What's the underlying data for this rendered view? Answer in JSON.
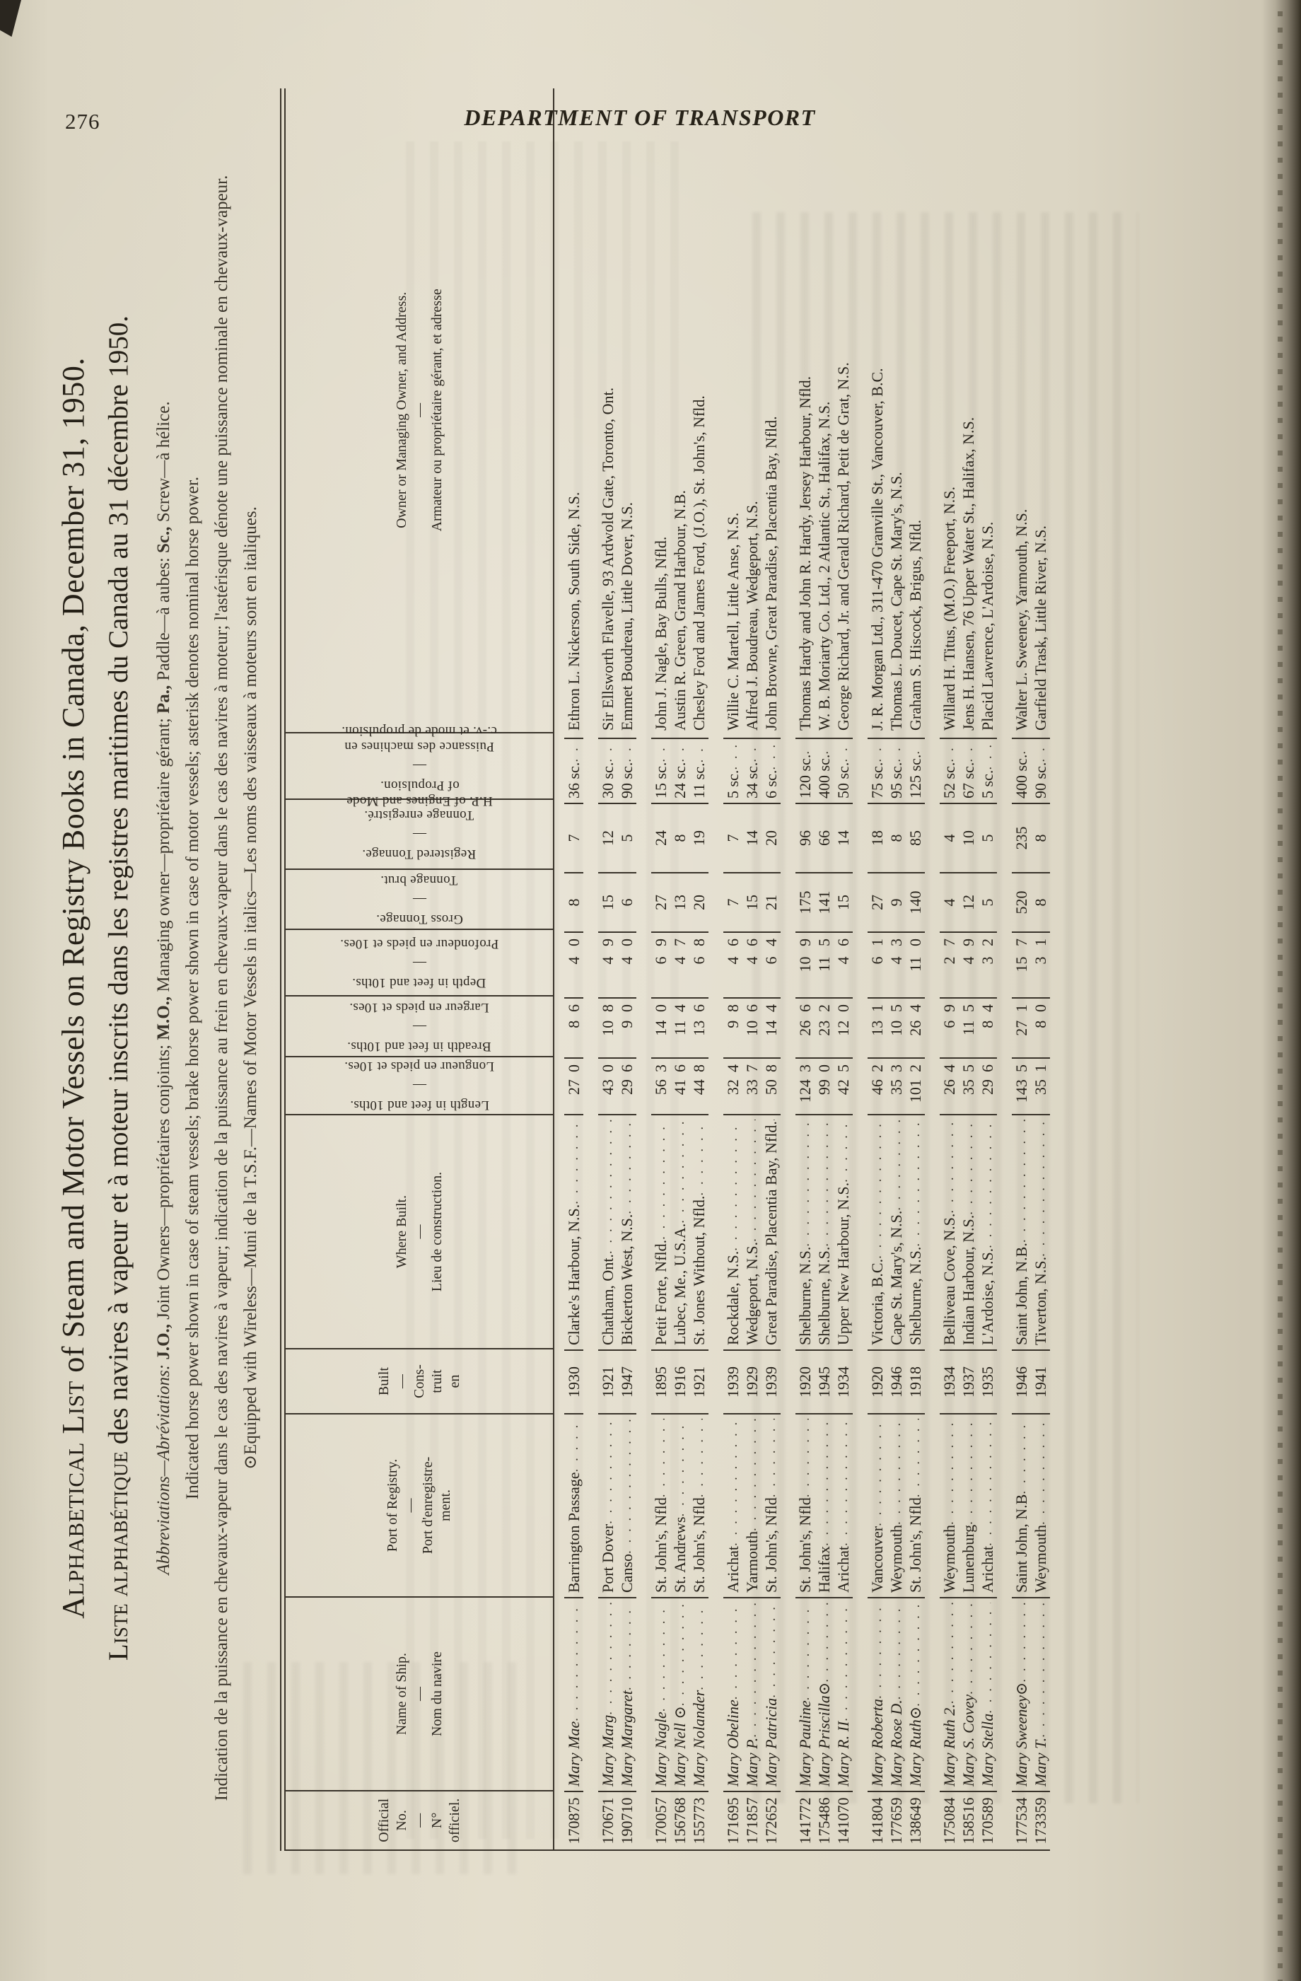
{
  "page": {
    "number": "276",
    "running_head": "DEPARTMENT OF TRANSPORT"
  },
  "title": {
    "en_lead": "Alphabetical List",
    "en_rest": " of Steam and Motor Vessels on Registry Books in Canada, December 31, 1950.",
    "fr_lead": "Liste alphabétique",
    "fr_rest": " des navires à vapeur et à moteur inscrits dans les registres maritimes du Canada au 31 décembre 1950."
  },
  "notes": {
    "abbrev_segments": [
      {
        "t": "Abbreviations—Abréviations: ",
        "s": "i"
      },
      {
        "t": "J.O.,",
        "s": "b"
      },
      {
        "t": " Joint Owners—propriétaires conjoints; ",
        "s": "n"
      },
      {
        "t": "M.O.,",
        "s": "b"
      },
      {
        "t": " Managing owner—propriétaire gérant; ",
        "s": "n"
      },
      {
        "t": "Pa.,",
        "s": "b"
      },
      {
        "t": " Paddle—à aubes: ",
        "s": "n"
      },
      {
        "t": "Sc.,",
        "s": "b"
      },
      {
        "t": " Screw—à hélice.",
        "s": "n"
      }
    ],
    "hp_en": "Indicated horse power shown in case of steam vessels; brake horse power shown in case of motor vessels; asterisk denotes nominal horse power.",
    "hp_fr": "Indication de la puissance en chevaux-vapeur dans le cas des navires à vapeur; indication de la puissance au frein en chevaux-vapeur dans le cas des navires à moteur; l'astérisque dénote une puissance nominale en chevaux-vapeur.",
    "wireless": "⊙Equipped with Wireless—Muni de la T.S.F.—Names of Motor Vessels in italics—Les noms des vaisseaux à moteurs sont en italiques."
  },
  "table": {
    "sep": "—",
    "headers": {
      "official_no": "Official\nNo.\n—\nN°\nofficiel.",
      "name": "Name of Ship.\n—\nNom du navire",
      "port": "Port of Registry.\n—\nPort d'enregistre-\nment.",
      "built": "Built\n—\nCons-\ntruit\nen",
      "where": "Where Built.\n—\nLieu de construction.",
      "length": {
        "en": "Length in feet and 10ths.",
        "fr": "Longueur en pieds et 10es."
      },
      "breadth": {
        "en": "Breadth in feet and 10ths.",
        "fr": "Largeur en pieds et 10es."
      },
      "depth": {
        "en": "Depth in feet and 10ths.",
        "fr": "Profondeur en pieds et 10es."
      },
      "gross": {
        "en": "Gross Tonnage.",
        "fr": "Tonnage brut."
      },
      "registered": {
        "en": "Registered Tonnage.",
        "fr": "Tonnage enregistré."
      },
      "hp": {
        "en": "H.P. of Engines and Mode\nof Propulsion.",
        "fr": "Puissance des machines en\nc.-v. et mode de propulsion."
      },
      "owner": "Owner or Managing Owner, and Address.\n—\nArmateur ou propriétaire gérant, et adresse"
    },
    "groups": [
      [
        {
          "no": "170875",
          "name": "Mary Mae",
          "port": "Barrington Passage",
          "blt": "1930",
          "whr": "Clarke's Harbour, N.S.",
          "len": [
            "27",
            "0"
          ],
          "brd": [
            "8",
            "6"
          ],
          "dep": [
            "4",
            "0"
          ],
          "grs": "8",
          "reg": "7",
          "hp": "36 sc.",
          "own": "Ethron L. Nickerson, South Side, N.S."
        }
      ],
      [
        {
          "no": "170671",
          "name": "Mary Marg",
          "port": "Port Dover",
          "blt": "1921",
          "whr": "Chatham, Ont.",
          "len": [
            "43",
            "0"
          ],
          "brd": [
            "10",
            "8"
          ],
          "dep": [
            "4",
            "9"
          ],
          "grs": "15",
          "reg": "12",
          "hp": "30 sc.",
          "own": "Sir Ellsworth Flavelle, 93 Ardwold Gate, Toronto, Ont."
        },
        {
          "no": "190710",
          "name": "Mary Margaret",
          "port": "Canso",
          "blt": "1947",
          "whr": "Bickerton West, N.S.",
          "len": [
            "29",
            "6"
          ],
          "brd": [
            "9",
            "0"
          ],
          "dep": [
            "4",
            "0"
          ],
          "grs": "6",
          "reg": "5",
          "hp": "90 sc.",
          "own": "Emmet Boudreau, Little Dover, N.S."
        }
      ],
      [
        {
          "no": "170057",
          "name": "Mary Nagle",
          "port": "St. John's, Nfld",
          "blt": "1895",
          "whr": "Petit Forte, Nfld.",
          "len": [
            "56",
            "3"
          ],
          "brd": [
            "14",
            "0"
          ],
          "dep": [
            "6",
            "9"
          ],
          "grs": "27",
          "reg": "24",
          "hp": "15 sc.",
          "own": "John J. Nagle, Bay Bulls, Nfld."
        },
        {
          "no": "156768",
          "name": "Mary Nell ⊙",
          "port": "St. Andrews",
          "blt": "1916",
          "whr": "Lubec, Me., U.S.A.",
          "len": [
            "41",
            "6"
          ],
          "brd": [
            "11",
            "4"
          ],
          "dep": [
            "4",
            "7"
          ],
          "grs": "13",
          "reg": "8",
          "hp": "24 sc.",
          "own": "Austin R. Green, Grand Harbour, N.B."
        },
        {
          "no": "155773",
          "name": "Mary Nolander",
          "port": "St. John's, Nfld",
          "blt": "1921",
          "whr": "St. Jones Without, Nfld.",
          "len": [
            "44",
            "8"
          ],
          "brd": [
            "13",
            "6"
          ],
          "dep": [
            "6",
            "8"
          ],
          "grs": "20",
          "reg": "19",
          "hp": "11 sc.",
          "own": "Chesley Ford and James Ford, (J.O.), St. John's, Nfld."
        }
      ],
      [
        {
          "no": "171695",
          "name": "Mary Obeline",
          "port": "Arichat",
          "blt": "1939",
          "whr": "Rockdale, N.S.",
          "len": [
            "32",
            "4"
          ],
          "brd": [
            "9",
            "8"
          ],
          "dep": [
            "4",
            "6"
          ],
          "grs": "7",
          "reg": "7",
          "hp": "5 sc.",
          "own": "Willie C. Martell, Little Anse, N.S."
        },
        {
          "no": "171857",
          "name": "Mary P.",
          "port": "Yarmouth",
          "blt": "1929",
          "whr": "Wedgeport, N.S.",
          "len": [
            "33",
            "7"
          ],
          "brd": [
            "10",
            "6"
          ],
          "dep": [
            "4",
            "6"
          ],
          "grs": "15",
          "reg": "14",
          "hp": "34 sc.",
          "own": "Alfred J. Boudreau, Wedgeport, N.S."
        },
        {
          "no": "172652",
          "name": "Mary Patricia",
          "port": "St. John's, Nfld",
          "blt": "1939",
          "whr": "Great Paradise, Placentia Bay, Nfld.",
          "len": [
            "50",
            "8"
          ],
          "brd": [
            "14",
            "4"
          ],
          "dep": [
            "6",
            "4"
          ],
          "grs": "21",
          "reg": "20",
          "hp": "6 sc.",
          "own": "John Browne, Great Paradise, Placentia Bay, Nfld."
        }
      ],
      [
        {
          "no": "141772",
          "name": "Mary Pauline",
          "port": "St. John's, Nfld",
          "blt": "1920",
          "whr": "Shelburne, N.S.",
          "len": [
            "124",
            "3"
          ],
          "brd": [
            "26",
            "6"
          ],
          "dep": [
            "10",
            "9"
          ],
          "grs": "175",
          "reg": "96",
          "hp": "120 sc.",
          "own": "Thomas Hardy and John R. Hardy, Jersey Harbour, Nfld."
        },
        {
          "no": "175486",
          "name": "Mary Priscilla⊙",
          "port": "Halifax",
          "blt": "1945",
          "whr": "Shelburne, N.S.",
          "len": [
            "99",
            "0"
          ],
          "brd": [
            "23",
            "2"
          ],
          "dep": [
            "11",
            "5"
          ],
          "grs": "141",
          "reg": "66",
          "hp": "400 sc.",
          "own": "W. B. Moriarty Co. Ltd., 2 Atlantic St., Halifax, N.S."
        },
        {
          "no": "141070",
          "name": "Mary R. II",
          "port": "Arichat",
          "blt": "1934",
          "whr": "Upper New Harbour, N.S.",
          "len": [
            "42",
            "5"
          ],
          "brd": [
            "12",
            "0"
          ],
          "dep": [
            "4",
            "6"
          ],
          "grs": "15",
          "reg": "14",
          "hp": "50 sc.",
          "own": "George Richard, Jr. and Gerald Richard, Petit de Grat, N.S."
        }
      ],
      [
        {
          "no": "141804",
          "name": "Mary Roberta",
          "port": "Vancouver",
          "blt": "1920",
          "whr": "Victoria, B.C.",
          "len": [
            "46",
            "2"
          ],
          "brd": [
            "13",
            "1"
          ],
          "dep": [
            "6",
            "1"
          ],
          "grs": "27",
          "reg": "18",
          "hp": "75 sc.",
          "own": "J. R. Morgan Ltd., 311-470 Granville St., Vancouver, B.C."
        },
        {
          "no": "177659",
          "name": "Mary Rose D.",
          "port": "Weymouth",
          "blt": "1946",
          "whr": "Cape St. Mary's, N.S.",
          "len": [
            "35",
            "3"
          ],
          "brd": [
            "10",
            "5"
          ],
          "dep": [
            "4",
            "3"
          ],
          "grs": "9",
          "reg": "8",
          "hp": "95 sc.",
          "own": "Thomas L. Doucet, Cape St. Mary's, N.S."
        },
        {
          "no": "138649",
          "name": "Mary Ruth⊙",
          "port": "St. John's, Nfld",
          "blt": "1918",
          "whr": "Shelburne, N.S.",
          "len": [
            "101",
            "2"
          ],
          "brd": [
            "26",
            "4"
          ],
          "dep": [
            "11",
            "0"
          ],
          "grs": "140",
          "reg": "85",
          "hp": "125 sc.",
          "own": "Graham S. Hiscock, Brigus, Nfld."
        }
      ],
      [
        {
          "no": "175084",
          "name": "Mary Ruth 2.",
          "port": "Weymouth",
          "blt": "1934",
          "whr": "Belliveau Cove, N.S.",
          "len": [
            "26",
            "4"
          ],
          "brd": [
            "6",
            "9"
          ],
          "dep": [
            "2",
            "7"
          ],
          "grs": "4",
          "reg": "4",
          "hp": "52 sc.",
          "own": "Willard H. Titus, (M.O.) Freeport, N.S."
        },
        {
          "no": "158516",
          "name": "Mary S. Covey",
          "port": "Lunenburg",
          "blt": "1937",
          "whr": "Indian Harbour, N.S.",
          "len": [
            "35",
            "5"
          ],
          "brd": [
            "11",
            "5"
          ],
          "dep": [
            "4",
            "9"
          ],
          "grs": "12",
          "reg": "10",
          "hp": "67 sc.",
          "own": "Jens H. Hansen, 76 Upper Water St., Halifax, N.S."
        },
        {
          "no": "170589",
          "name": "Mary Stella",
          "port": "Arichat",
          "blt": "1935",
          "whr": "L'Ardoise, N.S.",
          "len": [
            "29",
            "6"
          ],
          "brd": [
            "8",
            "4"
          ],
          "dep": [
            "3",
            "2"
          ],
          "grs": "5",
          "reg": "5",
          "hp": "5 sc.",
          "own": "Placid Lawrence, L'Ardoise, N.S."
        }
      ],
      [
        {
          "no": "177534",
          "name": "Mary Sweeney⊙",
          "port": "Saint John, N.B",
          "blt": "1946",
          "whr": "Saint John, N.B.",
          "len": [
            "143",
            "5"
          ],
          "brd": [
            "27",
            "1"
          ],
          "dep": [
            "15",
            "7"
          ],
          "grs": "520",
          "reg": "235",
          "hp": "400 sc.",
          "own": "Walter L. Sweeney, Yarmouth, N.S."
        },
        {
          "no": "173359",
          "name": "Mary T.",
          "port": "Weymouth",
          "blt": "1941",
          "whr": "Tiverton, N.S.",
          "len": [
            "35",
            "1"
          ],
          "brd": [
            "8",
            "0"
          ],
          "dep": [
            "3",
            "1"
          ],
          "grs": "8",
          "reg": "8",
          "hp": "90 sc.",
          "own": "Garfield Trask, Little River, N.S."
        }
      ]
    ]
  }
}
